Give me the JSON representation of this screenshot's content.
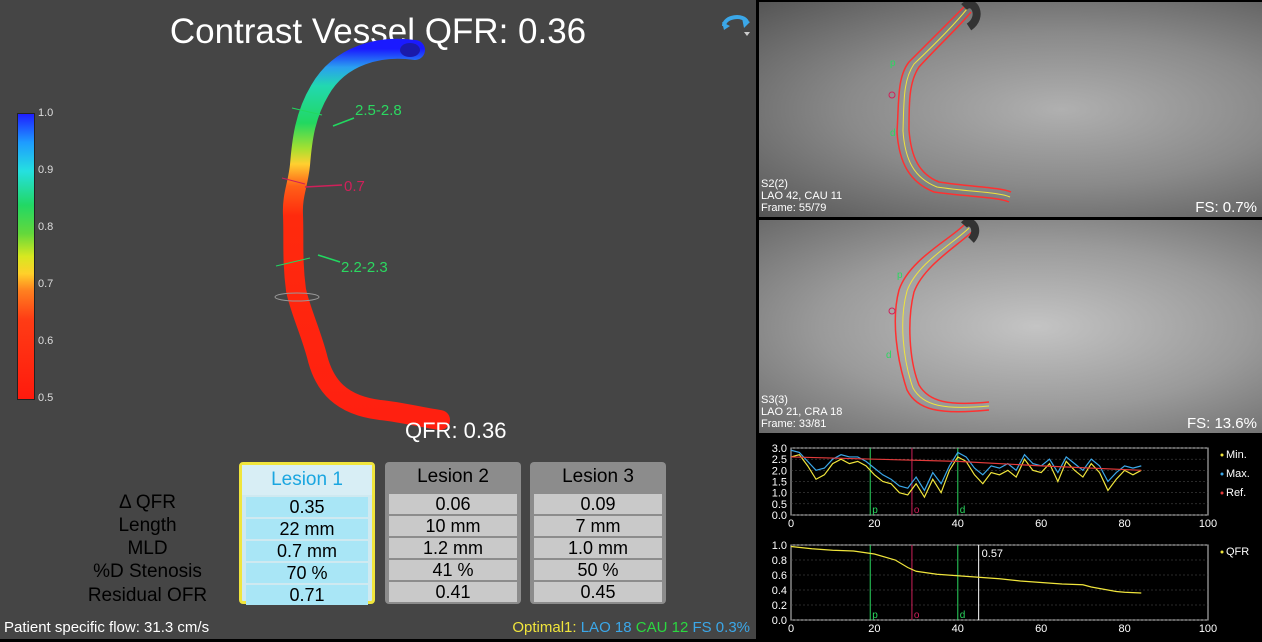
{
  "title": "Contrast Vessel QFR: 0.36",
  "color_scale": {
    "ticks": [
      "1.0",
      "0.9",
      "0.8",
      "0.7",
      "0.6",
      "0.5"
    ]
  },
  "vessel_labels": {
    "diam1": "2.5-2.8",
    "stenosis": "0.7",
    "diam2": "2.2-2.3"
  },
  "qfr_label": "QFR: 0.36",
  "row_labels": [
    "Δ QFR",
    "Length",
    "MLD",
    "%D Stenosis",
    "Residual OFR"
  ],
  "lesions": [
    {
      "name": "Lesion 1",
      "values": [
        "0.35",
        "22 mm",
        "0.7 mm",
        "70 %",
        "0.71"
      ]
    },
    {
      "name": "Lesion 2",
      "values": [
        "0.06",
        "10 mm",
        "1.2 mm",
        "41 %",
        "0.41"
      ]
    },
    {
      "name": "Lesion 3",
      "values": [
        "0.09",
        "7 mm",
        "1.0 mm",
        "50 %",
        "0.45"
      ]
    }
  ],
  "footer": {
    "flow": "Patient specific flow: 31.3 cm/s",
    "optimal_prefix": "Optimal1:",
    "lao": "LAO 18",
    "cau": "CAU 12",
    "fs": "FS 0.3%"
  },
  "angio_top": {
    "series": "S2(2)",
    "angles": "LAO 42, CAU 11",
    "frame": "Frame: 55/79",
    "fs": "FS: 0.7%"
  },
  "angio_bottom": {
    "series": "S3(3)",
    "angles": "LAO 21, CRA 18",
    "frame": "Frame: 33/81",
    "fs": "FS: 13.6%"
  },
  "chart_data": [
    {
      "type": "line",
      "ylim": [
        0,
        3.0
      ],
      "xlim": [
        0,
        100
      ],
      "yticks": [
        "3.0",
        "2.5",
        "2.0",
        "1.5",
        "1.0",
        "0.5",
        "0.0"
      ],
      "xticks": [
        "0",
        "20",
        "40",
        "60",
        "80",
        "100"
      ],
      "markers": [
        {
          "label": "p",
          "x": 19
        },
        {
          "label": "o",
          "x": 29
        },
        {
          "label": "d",
          "x": 40
        }
      ],
      "series": [
        {
          "name": "Min.",
          "color": "#f0e53c",
          "x": [
            0,
            2,
            4,
            6,
            8,
            10,
            12,
            14,
            16,
            18,
            20,
            22,
            24,
            26,
            28,
            30,
            32,
            34,
            36,
            38,
            40,
            42,
            44,
            46,
            48,
            50,
            52,
            54,
            56,
            58,
            60,
            62,
            64,
            66,
            68,
            70,
            72,
            74,
            76,
            78,
            80,
            82,
            84
          ],
          "y": [
            2.6,
            2.7,
            2.2,
            1.6,
            1.8,
            2.3,
            2.5,
            2.3,
            2.4,
            2.2,
            1.8,
            1.5,
            1.4,
            1.0,
            0.9,
            1.4,
            0.8,
            1.6,
            1.0,
            2.0,
            2.6,
            2.4,
            1.8,
            1.4,
            1.9,
            1.8,
            2.0,
            1.7,
            2.5,
            2.0,
            1.9,
            2.3,
            1.5,
            2.4,
            2.0,
            1.7,
            2.3,
            1.9,
            1.1,
            1.6,
            2.0,
            1.8,
            2.0
          ]
        },
        {
          "name": "Max.",
          "color": "#3ba7e8",
          "x": [
            0,
            2,
            4,
            6,
            8,
            10,
            12,
            14,
            16,
            18,
            20,
            22,
            24,
            26,
            28,
            30,
            32,
            34,
            36,
            38,
            40,
            42,
            44,
            46,
            48,
            50,
            52,
            54,
            56,
            58,
            60,
            62,
            64,
            66,
            68,
            70,
            72,
            74,
            76,
            78,
            80,
            82,
            84
          ],
          "y": [
            2.9,
            2.8,
            2.4,
            2.0,
            2.1,
            2.5,
            2.7,
            2.6,
            2.6,
            2.4,
            2.1,
            1.8,
            1.6,
            1.3,
            1.2,
            1.7,
            1.1,
            1.9,
            1.4,
            2.2,
            2.8,
            2.6,
            2.1,
            1.8,
            2.2,
            2.1,
            2.3,
            2.0,
            2.7,
            2.3,
            2.2,
            2.5,
            1.9,
            2.6,
            2.3,
            2.0,
            2.5,
            2.2,
            1.5,
            1.9,
            2.2,
            2.1,
            2.2
          ]
        },
        {
          "name": "Ref.",
          "color": "#e23b3b",
          "x": [
            0,
            20,
            40,
            60,
            84
          ],
          "y": [
            2.6,
            2.5,
            2.4,
            2.2,
            2.0
          ]
        }
      ],
      "legend": [
        "Min.",
        "Max.",
        "Ref."
      ]
    },
    {
      "type": "line",
      "ylim": [
        0,
        1.0
      ],
      "xlim": [
        0,
        100
      ],
      "yticks": [
        "1.0",
        "0.8",
        "0.6",
        "0.4",
        "0.2",
        "0.0"
      ],
      "xticks": [
        "0",
        "20",
        "40",
        "60",
        "80",
        "100"
      ],
      "markers": [
        {
          "label": "p",
          "x": 19
        },
        {
          "label": "o",
          "x": 29
        },
        {
          "label": "d",
          "x": 40
        }
      ],
      "annotation": {
        "x": 45,
        "label": "0.57"
      },
      "series": [
        {
          "name": "QFR",
          "color": "#f0e53c",
          "x": [
            0,
            5,
            10,
            15,
            20,
            25,
            28,
            30,
            35,
            40,
            45,
            50,
            55,
            60,
            65,
            70,
            72,
            74,
            76,
            78,
            80,
            84
          ],
          "y": [
            0.98,
            0.95,
            0.93,
            0.92,
            0.88,
            0.8,
            0.7,
            0.65,
            0.61,
            0.59,
            0.57,
            0.55,
            0.52,
            0.5,
            0.48,
            0.47,
            0.44,
            0.42,
            0.4,
            0.38,
            0.37,
            0.36
          ]
        }
      ],
      "legend": [
        "QFR"
      ]
    }
  ]
}
